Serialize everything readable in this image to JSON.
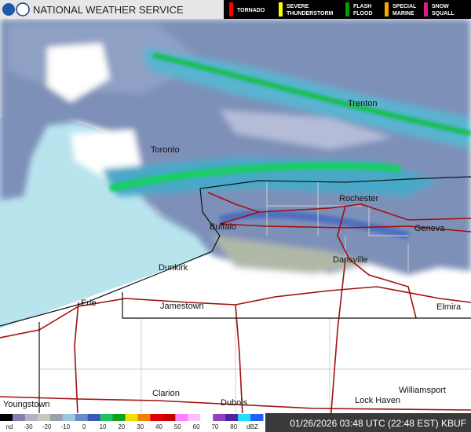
{
  "header": {
    "title": "NATIONAL WEATHER SERVICE",
    "warnings": [
      {
        "lines": [
          "TORNADO"
        ],
        "color": "#ff0000"
      },
      {
        "lines": [
          "SEVERE",
          "THUNDERSTORM"
        ],
        "color": "#ffff00"
      },
      {
        "lines": [
          "FLASH",
          "FLOOD"
        ],
        "color": "#00a000"
      },
      {
        "lines": [
          "SPECIAL",
          "MARINE"
        ],
        "color": "#ffa500"
      },
      {
        "lines": [
          "SNOW",
          "SQUALL"
        ],
        "color": "#e0198a"
      }
    ]
  },
  "cities": [
    "Trenton",
    "Toronto",
    "Rochester",
    "Buffalo",
    "Geneva",
    "Dansville",
    "Dunkirk",
    "Erie",
    "Jamestown",
    "Elmira",
    "Youngstown",
    "Clarion",
    "Dubois",
    "Lock Haven",
    "Williamsport"
  ],
  "scale": {
    "labels": [
      "nd",
      -30,
      -20,
      -10,
      0,
      10,
      20,
      30,
      40,
      50,
      60,
      70,
      80,
      "dBZ"
    ],
    "colors": [
      "#000000",
      "#8a7bb0",
      "#b8b0c8",
      "#c8c8b8",
      "#9aa0b0",
      "#9cc8dc",
      "#6a8ac8",
      "#3858c0",
      "#20c060",
      "#10a020",
      "#f0e000",
      "#f08000",
      "#e00000",
      "#c00000",
      "#ff80ff",
      "#ffc0ff",
      "#ffffff",
      "#9040c0",
      "#5020a0",
      "#20e0ff",
      "#2060ff"
    ]
  },
  "timestamp": "01/26/2026 03:48 UTC (22:48 EST) KBUF"
}
